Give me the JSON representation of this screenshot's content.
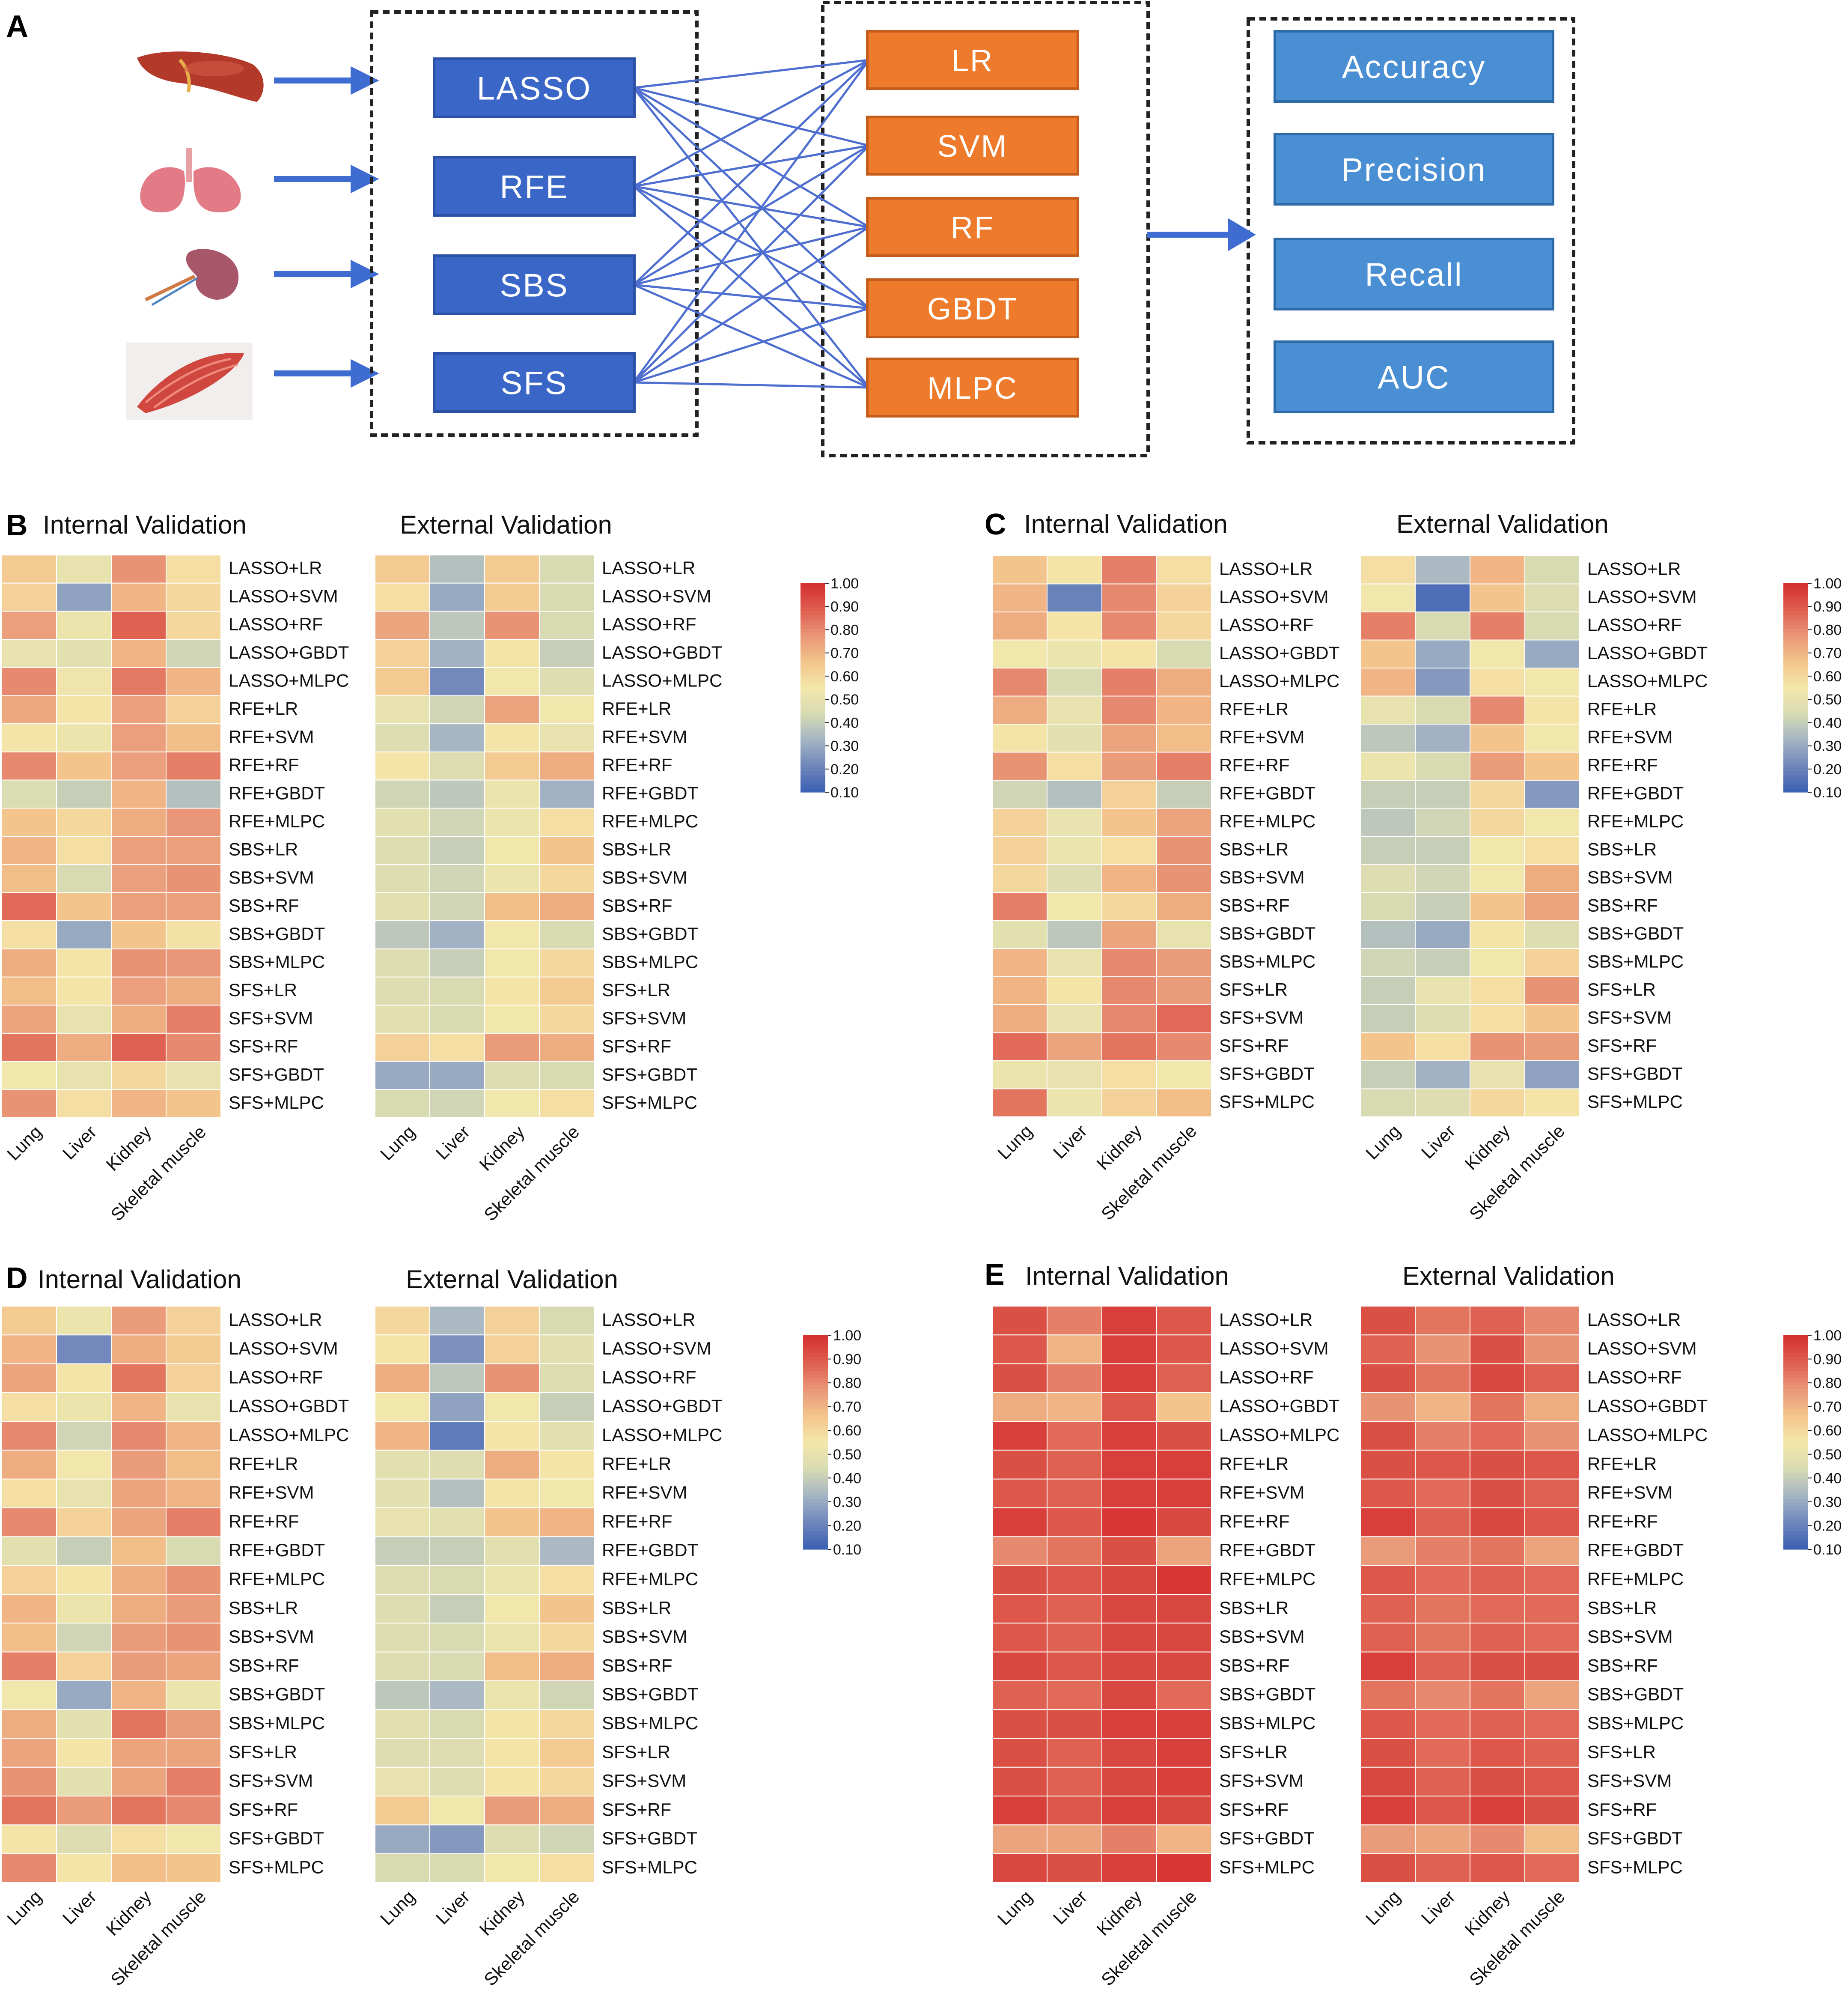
{
  "panel_a": {
    "letter": "A",
    "feature_selection": [
      "LASSO",
      "RFE",
      "SBS",
      "SFS"
    ],
    "classifiers": [
      "LR",
      "SVM",
      "RF",
      "GBDT",
      "MLPC"
    ],
    "metrics": [
      "Accuracy",
      "Precision",
      "Recall",
      "AUC"
    ],
    "organ_icons": [
      "liver-icon",
      "lung-icon",
      "kidney-icon",
      "skeletal-muscle-icon"
    ],
    "colors": {
      "selector": "#3a66c7",
      "classifier": "#ee7a2c",
      "metric": "#4a8fd4",
      "line": "#4f6fd0"
    }
  },
  "heatmap_rows": [
    "LASSO+LR",
    "LASSO+SVM",
    "LASSO+RF",
    "LASSO+GBDT",
    "LASSO+MLPC",
    "RFE+LR",
    "RFE+SVM",
    "RFE+RF",
    "RFE+GBDT",
    "RFE+MLPC",
    "SBS+LR",
    "SBS+SVM",
    "SBS+RF",
    "SBS+GBDT",
    "SBS+MLPC",
    "SFS+LR",
    "SFS+SVM",
    "SFS+RF",
    "SFS+GBDT",
    "SFS+MLPC"
  ],
  "heatmap_cols": [
    "Lung",
    "Liver",
    "Kidney",
    "Skeletal muscle"
  ],
  "colorbar": {
    "ticks": [
      "1.00",
      "0.90",
      "0.80",
      "0.70",
      "0.60",
      "0.50",
      "0.40",
      "0.30",
      "0.20",
      "0.10"
    ],
    "range": [
      0.1,
      1.0
    ]
  },
  "colorscale": [
    "#3b5fb4",
    "#6f86bb",
    "#a4b4c4",
    "#d7dbb2",
    "#f4e7ab",
    "#f3c48c",
    "#e99577",
    "#de5d4e",
    "#d42f2f"
  ],
  "chart_data": [
    {
      "panel": "B",
      "type": "heatmap",
      "title": "Internal Validation",
      "rows_key": "heatmap_rows",
      "cols_key": "heatmap_cols",
      "values": [
        [
          0.64,
          0.5,
          0.78,
          0.58
        ],
        [
          0.62,
          0.28,
          0.7,
          0.6
        ],
        [
          0.75,
          0.52,
          0.88,
          0.6
        ],
        [
          0.5,
          0.48,
          0.7,
          0.42
        ],
        [
          0.8,
          0.53,
          0.83,
          0.7
        ],
        [
          0.73,
          0.56,
          0.75,
          0.62
        ],
        [
          0.56,
          0.52,
          0.75,
          0.68
        ],
        [
          0.8,
          0.66,
          0.75,
          0.82
        ],
        [
          0.45,
          0.4,
          0.7,
          0.36
        ],
        [
          0.66,
          0.6,
          0.72,
          0.77
        ],
        [
          0.7,
          0.58,
          0.75,
          0.75
        ],
        [
          0.68,
          0.44,
          0.75,
          0.78
        ],
        [
          0.86,
          0.66,
          0.75,
          0.75
        ],
        [
          0.58,
          0.3,
          0.66,
          0.57
        ],
        [
          0.72,
          0.56,
          0.78,
          0.77
        ],
        [
          0.68,
          0.56,
          0.75,
          0.72
        ],
        [
          0.74,
          0.5,
          0.72,
          0.82
        ],
        [
          0.84,
          0.72,
          0.88,
          0.8
        ],
        [
          0.54,
          0.5,
          0.6,
          0.5
        ],
        [
          0.78,
          0.58,
          0.7,
          0.66
        ]
      ]
    },
    {
      "panel": "B",
      "type": "heatmap",
      "title": "External Validation",
      "rows_key": "heatmap_rows",
      "cols_key": "heatmap_cols",
      "values": [
        [
          0.64,
          0.36,
          0.64,
          0.44
        ],
        [
          0.58,
          0.3,
          0.64,
          0.44
        ],
        [
          0.74,
          0.38,
          0.78,
          0.44
        ],
        [
          0.62,
          0.32,
          0.56,
          0.4
        ],
        [
          0.64,
          0.22,
          0.54,
          0.46
        ],
        [
          0.5,
          0.42,
          0.74,
          0.54
        ],
        [
          0.46,
          0.33,
          0.56,
          0.5
        ],
        [
          0.56,
          0.46,
          0.64,
          0.72
        ],
        [
          0.42,
          0.38,
          0.52,
          0.32
        ],
        [
          0.48,
          0.42,
          0.52,
          0.58
        ],
        [
          0.46,
          0.4,
          0.54,
          0.66
        ],
        [
          0.46,
          0.42,
          0.52,
          0.6
        ],
        [
          0.48,
          0.42,
          0.68,
          0.72
        ],
        [
          0.38,
          0.32,
          0.54,
          0.44
        ],
        [
          0.46,
          0.4,
          0.54,
          0.6
        ],
        [
          0.46,
          0.44,
          0.56,
          0.64
        ],
        [
          0.48,
          0.44,
          0.54,
          0.6
        ],
        [
          0.62,
          0.58,
          0.76,
          0.72
        ],
        [
          0.3,
          0.3,
          0.46,
          0.44
        ],
        [
          0.44,
          0.42,
          0.54,
          0.58
        ]
      ]
    },
    {
      "panel": "C",
      "type": "heatmap",
      "title": "Internal Validation",
      "rows_key": "heatmap_rows",
      "cols_key": "heatmap_cols",
      "values": [
        [
          0.66,
          0.56,
          0.82,
          0.58
        ],
        [
          0.7,
          0.2,
          0.8,
          0.62
        ],
        [
          0.72,
          0.56,
          0.8,
          0.6
        ],
        [
          0.54,
          0.52,
          0.56,
          0.44
        ],
        [
          0.8,
          0.44,
          0.82,
          0.72
        ],
        [
          0.72,
          0.5,
          0.8,
          0.7
        ],
        [
          0.56,
          0.48,
          0.74,
          0.68
        ],
        [
          0.78,
          0.58,
          0.76,
          0.82
        ],
        [
          0.42,
          0.36,
          0.62,
          0.4
        ],
        [
          0.62,
          0.5,
          0.66,
          0.74
        ],
        [
          0.62,
          0.52,
          0.58,
          0.78
        ],
        [
          0.6,
          0.46,
          0.7,
          0.78
        ],
        [
          0.82,
          0.54,
          0.6,
          0.72
        ],
        [
          0.48,
          0.38,
          0.74,
          0.5
        ],
        [
          0.7,
          0.5,
          0.8,
          0.76
        ],
        [
          0.7,
          0.56,
          0.8,
          0.76
        ],
        [
          0.72,
          0.5,
          0.8,
          0.86
        ],
        [
          0.86,
          0.74,
          0.84,
          0.8
        ],
        [
          0.52,
          0.5,
          0.58,
          0.54
        ],
        [
          0.84,
          0.52,
          0.62,
          0.68
        ]
      ]
    },
    {
      "panel": "C",
      "type": "heatmap",
      "title": "External Validation",
      "rows_key": "heatmap_rows",
      "cols_key": "heatmap_cols",
      "values": [
        [
          0.58,
          0.34,
          0.7,
          0.44
        ],
        [
          0.54,
          0.14,
          0.66,
          0.46
        ],
        [
          0.82,
          0.44,
          0.82,
          0.44
        ],
        [
          0.66,
          0.3,
          0.54,
          0.3
        ],
        [
          0.7,
          0.26,
          0.58,
          0.54
        ],
        [
          0.5,
          0.44,
          0.8,
          0.56
        ],
        [
          0.38,
          0.32,
          0.66,
          0.54
        ],
        [
          0.52,
          0.44,
          0.76,
          0.66
        ],
        [
          0.4,
          0.4,
          0.6,
          0.26
        ],
        [
          0.38,
          0.42,
          0.6,
          0.54
        ],
        [
          0.4,
          0.4,
          0.54,
          0.58
        ],
        [
          0.46,
          0.42,
          0.54,
          0.72
        ],
        [
          0.44,
          0.4,
          0.66,
          0.74
        ],
        [
          0.36,
          0.3,
          0.56,
          0.46
        ],
        [
          0.42,
          0.4,
          0.54,
          0.62
        ],
        [
          0.4,
          0.5,
          0.58,
          0.78
        ],
        [
          0.4,
          0.46,
          0.58,
          0.66
        ],
        [
          0.66,
          0.58,
          0.78,
          0.76
        ],
        [
          0.4,
          0.32,
          0.5,
          0.28
        ],
        [
          0.44,
          0.46,
          0.6,
          0.56
        ]
      ]
    },
    {
      "panel": "D",
      "type": "heatmap",
      "title": "Internal Validation",
      "rows_key": "heatmap_rows",
      "cols_key": "heatmap_cols",
      "values": [
        [
          0.64,
          0.52,
          0.76,
          0.62
        ],
        [
          0.7,
          0.22,
          0.72,
          0.64
        ],
        [
          0.74,
          0.56,
          0.84,
          0.62
        ],
        [
          0.58,
          0.52,
          0.7,
          0.5
        ],
        [
          0.8,
          0.42,
          0.8,
          0.7
        ],
        [
          0.72,
          0.54,
          0.76,
          0.68
        ],
        [
          0.58,
          0.5,
          0.74,
          0.7
        ],
        [
          0.8,
          0.62,
          0.74,
          0.82
        ],
        [
          0.48,
          0.4,
          0.68,
          0.44
        ],
        [
          0.62,
          0.56,
          0.72,
          0.78
        ],
        [
          0.7,
          0.52,
          0.72,
          0.76
        ],
        [
          0.68,
          0.42,
          0.76,
          0.78
        ],
        [
          0.82,
          0.62,
          0.76,
          0.74
        ],
        [
          0.54,
          0.3,
          0.7,
          0.52
        ],
        [
          0.72,
          0.48,
          0.84,
          0.76
        ],
        [
          0.74,
          0.56,
          0.74,
          0.74
        ],
        [
          0.78,
          0.48,
          0.74,
          0.82
        ],
        [
          0.84,
          0.76,
          0.84,
          0.8
        ],
        [
          0.56,
          0.46,
          0.58,
          0.54
        ],
        [
          0.8,
          0.56,
          0.68,
          0.66
        ]
      ]
    },
    {
      "panel": "D",
      "type": "heatmap",
      "title": "External Validation",
      "rows_key": "heatmap_rows",
      "cols_key": "heatmap_cols",
      "values": [
        [
          0.6,
          0.34,
          0.62,
          0.44
        ],
        [
          0.56,
          0.24,
          0.62,
          0.48
        ],
        [
          0.72,
          0.38,
          0.78,
          0.46
        ],
        [
          0.54,
          0.28,
          0.54,
          0.4
        ],
        [
          0.7,
          0.18,
          0.56,
          0.48
        ],
        [
          0.48,
          0.46,
          0.72,
          0.56
        ],
        [
          0.48,
          0.36,
          0.56,
          0.54
        ],
        [
          0.5,
          0.48,
          0.66,
          0.7
        ],
        [
          0.4,
          0.4,
          0.48,
          0.34
        ],
        [
          0.46,
          0.44,
          0.52,
          0.58
        ],
        [
          0.46,
          0.4,
          0.54,
          0.66
        ],
        [
          0.46,
          0.44,
          0.52,
          0.6
        ],
        [
          0.46,
          0.44,
          0.68,
          0.72
        ],
        [
          0.38,
          0.34,
          0.52,
          0.42
        ],
        [
          0.48,
          0.44,
          0.56,
          0.6
        ],
        [
          0.46,
          0.46,
          0.56,
          0.64
        ],
        [
          0.5,
          0.46,
          0.56,
          0.6
        ],
        [
          0.64,
          0.54,
          0.76,
          0.72
        ],
        [
          0.3,
          0.26,
          0.46,
          0.42
        ],
        [
          0.44,
          0.44,
          0.54,
          0.58
        ]
      ]
    },
    {
      "panel": "E",
      "type": "heatmap",
      "title": "Internal Validation",
      "rows_key": "heatmap_rows",
      "cols_key": "heatmap_cols",
      "values": [
        [
          0.92,
          0.82,
          0.96,
          0.9
        ],
        [
          0.9,
          0.7,
          0.96,
          0.9
        ],
        [
          0.92,
          0.82,
          0.96,
          0.88
        ],
        [
          0.72,
          0.7,
          0.9,
          0.66
        ],
        [
          0.96,
          0.86,
          0.96,
          0.92
        ],
        [
          0.92,
          0.88,
          0.96,
          0.96
        ],
        [
          0.9,
          0.88,
          0.96,
          0.96
        ],
        [
          0.96,
          0.9,
          0.98,
          0.94
        ],
        [
          0.8,
          0.84,
          0.92,
          0.74
        ],
        [
          0.92,
          0.9,
          0.94,
          0.98
        ],
        [
          0.9,
          0.88,
          0.94,
          0.94
        ],
        [
          0.9,
          0.88,
          0.94,
          0.94
        ],
        [
          0.94,
          0.9,
          0.94,
          0.94
        ],
        [
          0.88,
          0.86,
          0.94,
          0.86
        ],
        [
          0.92,
          0.92,
          0.96,
          0.96
        ],
        [
          0.92,
          0.88,
          0.94,
          0.96
        ],
        [
          0.92,
          0.88,
          0.94,
          0.96
        ],
        [
          0.96,
          0.9,
          0.96,
          0.94
        ],
        [
          0.74,
          0.74,
          0.82,
          0.7
        ],
        [
          0.94,
          0.92,
          0.96,
          0.98
        ]
      ]
    },
    {
      "panel": "E",
      "type": "heatmap",
      "title": "External Validation",
      "rows_key": "heatmap_rows",
      "cols_key": "heatmap_cols",
      "values": [
        [
          0.92,
          0.84,
          0.88,
          0.8
        ],
        [
          0.88,
          0.78,
          0.92,
          0.78
        ],
        [
          0.92,
          0.84,
          0.94,
          0.88
        ],
        [
          0.78,
          0.7,
          0.84,
          0.72
        ],
        [
          0.92,
          0.82,
          0.86,
          0.78
        ],
        [
          0.92,
          0.9,
          0.92,
          0.9
        ],
        [
          0.9,
          0.86,
          0.92,
          0.88
        ],
        [
          0.96,
          0.88,
          0.94,
          0.9
        ],
        [
          0.76,
          0.82,
          0.84,
          0.74
        ],
        [
          0.9,
          0.86,
          0.88,
          0.86
        ],
        [
          0.88,
          0.84,
          0.86,
          0.86
        ],
        [
          0.88,
          0.84,
          0.88,
          0.86
        ],
        [
          0.96,
          0.88,
          0.92,
          0.92
        ],
        [
          0.84,
          0.8,
          0.84,
          0.74
        ],
        [
          0.9,
          0.86,
          0.88,
          0.86
        ],
        [
          0.92,
          0.86,
          0.9,
          0.88
        ],
        [
          0.94,
          0.88,
          0.92,
          0.9
        ],
        [
          0.96,
          0.9,
          0.96,
          0.92
        ],
        [
          0.76,
          0.74,
          0.8,
          0.68
        ],
        [
          0.92,
          0.88,
          0.9,
          0.86
        ]
      ]
    }
  ]
}
